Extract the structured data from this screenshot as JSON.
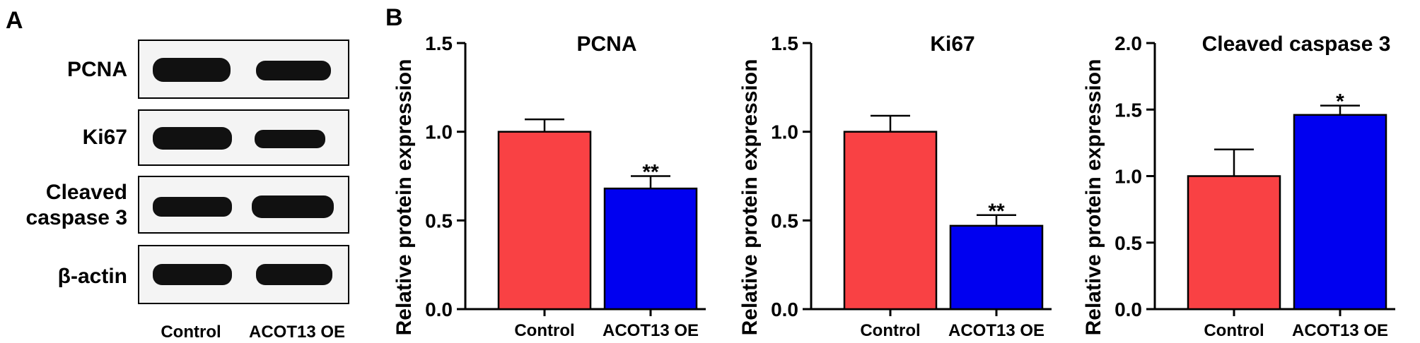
{
  "panel_a": {
    "label": "A",
    "rows": [
      {
        "label_lines": [
          "PCNA"
        ]
      },
      {
        "label_lines": [
          "Ki67"
        ]
      },
      {
        "label_lines": [
          "Cleaved",
          "caspase 3"
        ]
      },
      {
        "label_lines": [
          "β-actin"
        ]
      }
    ],
    "lanes": [
      "Control",
      "ACOT13 OE"
    ]
  },
  "panel_b": {
    "label": "B",
    "colors": {
      "Control": "#f94144",
      "ACOT13 OE": "#0000f0"
    }
  },
  "chart_data": [
    {
      "type": "bar",
      "title": "PCNA",
      "ylabel": "Relative protein expression",
      "categories": [
        "Control",
        "ACOT13 OE"
      ],
      "values": [
        1.0,
        0.68
      ],
      "errors": [
        0.07,
        0.07
      ],
      "significance": [
        "",
        "**"
      ],
      "ylim": [
        0,
        1.5
      ],
      "yticks": [
        "0.0",
        "0.5",
        "1.0",
        "1.5"
      ]
    },
    {
      "type": "bar",
      "title": "Ki67",
      "ylabel": "Relative protein expression",
      "categories": [
        "Control",
        "ACOT13 OE"
      ],
      "values": [
        1.0,
        0.47
      ],
      "errors": [
        0.09,
        0.06
      ],
      "significance": [
        "",
        "**"
      ],
      "ylim": [
        0,
        1.5
      ],
      "yticks": [
        "0.0",
        "0.5",
        "1.0",
        "1.5"
      ]
    },
    {
      "type": "bar",
      "title": "Cleaved caspase 3",
      "ylabel": "Relative protein expression",
      "categories": [
        "Control",
        "ACOT13 OE"
      ],
      "values": [
        1.0,
        1.46
      ],
      "errors": [
        0.2,
        0.07
      ],
      "significance": [
        "",
        "*"
      ],
      "ylim": [
        0,
        2.0
      ],
      "yticks": [
        "0.0",
        "0.5",
        "1.0",
        "1.5",
        "2.0"
      ]
    }
  ]
}
